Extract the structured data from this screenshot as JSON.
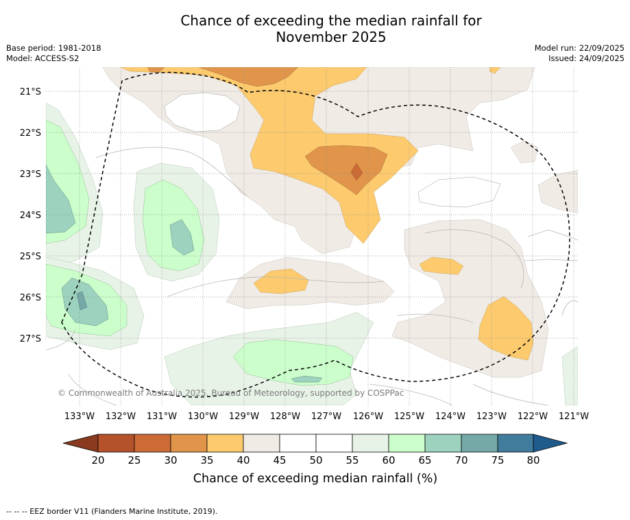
{
  "title": {
    "line1": "Chance of exceeding the median rainfall for",
    "line2": "November 2025"
  },
  "meta_left": {
    "base_period": "Base period: 1981-2018",
    "model": "Model: ACCESS-S2"
  },
  "meta_right": {
    "model_run": "Model run: 22/09/2025",
    "issued": "Issued: 24/09/2025"
  },
  "map": {
    "latitude_labels": [
      "21°S",
      "22°S",
      "23°S",
      "24°S",
      "25°S",
      "26°S",
      "27°S"
    ],
    "longitude_labels": [
      "133°W",
      "132°W",
      "131°W",
      "130°W",
      "129°W",
      "128°W",
      "127°W",
      "126°W",
      "125°W",
      "124°W",
      "123°W",
      "122°W",
      "121°W"
    ],
    "copyright": "© Commonwealth of Australia 2025, Bureau of Meteorology, supported by COSPPac"
  },
  "colorbar": {
    "ticks": [
      "20",
      "25",
      "30",
      "35",
      "40",
      "45",
      "50",
      "55",
      "60",
      "65",
      "70",
      "75",
      "80"
    ],
    "colors": [
      "#b4522c",
      "#cc6b36",
      "#e0954b",
      "#fdcb6e",
      "#f0ebe5",
      "#ffffff",
      "#ffffff",
      "#e8f3e8",
      "#ccfecc",
      "#9dd3be",
      "#75a9a7",
      "#427c9c"
    ],
    "low_color": "#8a3a1f",
    "high_color": "#205b8e",
    "label": "Chance of exceeding median rainfall (%)"
  },
  "footnote": "-- -- -- EEZ border V11 (Flanders Marine Institute, 2019)."
}
